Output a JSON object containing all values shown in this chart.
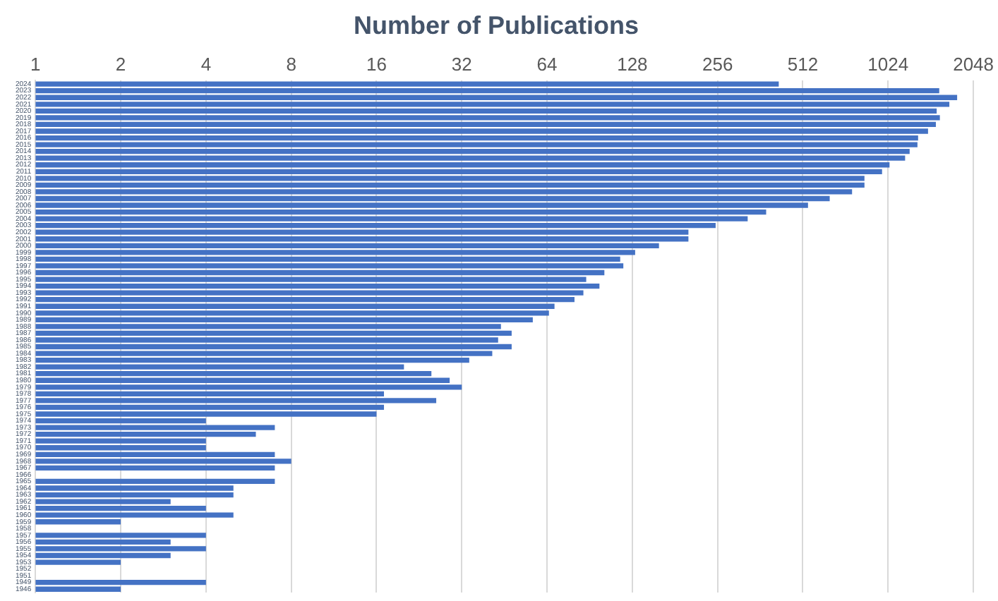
{
  "chart_data": {
    "type": "bar",
    "orientation": "horizontal",
    "title": "Number of Publications",
    "categories": [
      "2024",
      "2023",
      "2022",
      "2021",
      "2020",
      "2019",
      "2018",
      "2017",
      "2016",
      "2015",
      "2014",
      "2013",
      "2012",
      "2011",
      "2010",
      "2009",
      "2008",
      "2007",
      "2006",
      "2005",
      "2004",
      "2003",
      "2002",
      "2001",
      "2000",
      "1999",
      "1998",
      "1997",
      "1996",
      "1995",
      "1994",
      "1993",
      "1992",
      "1991",
      "1990",
      "1989",
      "1988",
      "1987",
      "1986",
      "1985",
      "1984",
      "1983",
      "1982",
      "1981",
      "1980",
      "1979",
      "1978",
      "1977",
      "1976",
      "1975",
      "1974",
      "1973",
      "1972",
      "1971",
      "1970",
      "1969",
      "1968",
      "1967",
      "1966",
      "1965",
      "1964",
      "1963",
      "1962",
      "1961",
      "1960",
      "1959",
      "1958",
      "1957",
      "1956",
      "1955",
      "1954",
      "1953",
      "1952",
      "1951",
      "1949",
      "1946"
    ],
    "values": [
      421,
      1552,
      1795,
      1685,
      1520,
      1560,
      1510,
      1417,
      1307,
      1300,
      1220,
      1176,
      1036,
      975,
      845,
      845,
      764,
      637,
      534,
      380,
      327,
      252,
      202,
      202,
      159,
      131,
      116,
      119,
      102,
      88,
      98,
      86,
      80,
      68,
      65,
      57,
      44,
      48,
      43,
      48,
      41,
      34,
      20,
      25,
      29,
      32,
      17,
      26,
      17,
      16,
      4,
      7,
      6,
      4,
      4,
      7,
      8,
      7,
      null,
      7,
      5,
      5,
      3,
      4,
      5,
      2,
      null,
      4,
      3,
      4,
      3,
      2,
      null,
      null,
      4,
      2
    ],
    "color": "#4472c4",
    "log": "x",
    "xlim": [
      1,
      2048
    ],
    "xticks": [
      1,
      2,
      4,
      8,
      16,
      32,
      64,
      128,
      256,
      512,
      1024,
      2048
    ],
    "grid": "x",
    "legend": false
  }
}
